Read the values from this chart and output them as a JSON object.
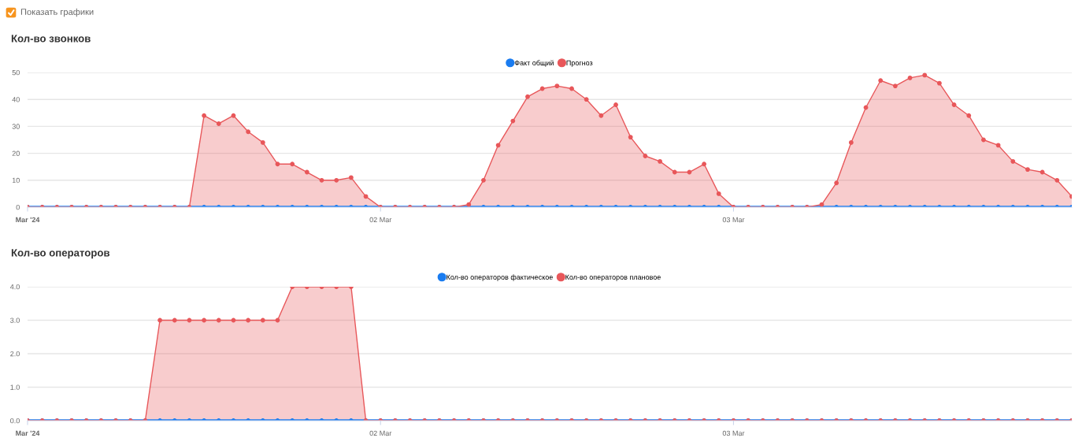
{
  "chart_data": [
    {
      "type": "area",
      "title": "Кол-во звонков",
      "annotations": [
        "Показать графики"
      ],
      "x": [
        "2024-03-01T00:00",
        "2024-03-01T01:00",
        "2024-03-01T02:00",
        "2024-03-01T03:00",
        "2024-03-01T04:00",
        "2024-03-01T05:00",
        "2024-03-01T06:00",
        "2024-03-01T07:00",
        "2024-03-01T08:00",
        "2024-03-01T09:00",
        "2024-03-01T10:00",
        "2024-03-01T11:00",
        "2024-03-01T12:00",
        "2024-03-01T13:00",
        "2024-03-01T14:00",
        "2024-03-01T15:00",
        "2024-03-01T16:00",
        "2024-03-01T17:00",
        "2024-03-01T18:00",
        "2024-03-01T19:00",
        "2024-03-01T20:00",
        "2024-03-01T21:00",
        "2024-03-01T22:00",
        "2024-03-01T23:00",
        "2024-03-02T00:00",
        "2024-03-02T01:00",
        "2024-03-02T02:00",
        "2024-03-02T03:00",
        "2024-03-02T04:00",
        "2024-03-02T05:00",
        "2024-03-02T06:00",
        "2024-03-02T07:00",
        "2024-03-02T08:00",
        "2024-03-02T09:00",
        "2024-03-02T10:00",
        "2024-03-02T11:00",
        "2024-03-02T12:00",
        "2024-03-02T13:00",
        "2024-03-02T14:00",
        "2024-03-02T15:00",
        "2024-03-02T16:00",
        "2024-03-02T17:00",
        "2024-03-02T18:00",
        "2024-03-02T19:00",
        "2024-03-02T20:00",
        "2024-03-02T21:00",
        "2024-03-02T22:00",
        "2024-03-02T23:00",
        "2024-03-03T00:00",
        "2024-03-03T01:00",
        "2024-03-03T02:00",
        "2024-03-03T03:00",
        "2024-03-03T04:00",
        "2024-03-03T05:00",
        "2024-03-03T06:00",
        "2024-03-03T07:00",
        "2024-03-03T08:00",
        "2024-03-03T09:00",
        "2024-03-03T10:00",
        "2024-03-03T11:00",
        "2024-03-03T12:00",
        "2024-03-03T13:00",
        "2024-03-03T14:00",
        "2024-03-03T15:00",
        "2024-03-03T16:00",
        "2024-03-03T17:00",
        "2024-03-03T18:00",
        "2024-03-03T19:00",
        "2024-03-03T20:00",
        "2024-03-03T21:00",
        "2024-03-03T22:00",
        "2024-03-03T23:00"
      ],
      "xlim": [
        "2024-03-01T00:00",
        "2024-03-03T23:00"
      ],
      "xticks": [
        {
          "value": "2024-03-01T00:00",
          "label": "Mar '24"
        },
        {
          "value": "2024-03-02T00:00",
          "label": "02 Mar"
        },
        {
          "value": "2024-03-03T00:00",
          "label": "03 Mar"
        }
      ],
      "ylim": [
        0,
        50
      ],
      "yticks": [
        0,
        10,
        20,
        30,
        40,
        50
      ],
      "grid": "y",
      "legend": "top",
      "marker": "circle",
      "line_style": "solid",
      "series": [
        {
          "name": "Факт общий",
          "type": "line",
          "color": "#1a7cf0",
          "values": [
            0,
            0,
            0,
            0,
            0,
            0,
            0,
            0,
            0,
            0,
            0,
            0,
            0,
            0,
            0,
            0,
            0,
            0,
            0,
            0,
            0,
            0,
            0,
            0,
            0,
            0,
            0,
            0,
            0,
            0,
            0,
            0,
            0,
            0,
            0,
            0,
            0,
            0,
            0,
            0,
            0,
            0,
            0,
            0,
            0,
            0,
            0,
            0,
            0,
            0,
            0,
            0,
            0,
            0,
            0,
            0,
            0,
            0,
            0,
            0,
            0,
            0,
            0,
            0,
            0,
            0,
            0,
            0,
            0,
            0,
            0,
            0
          ]
        },
        {
          "name": "Прогноз",
          "color": "#e8575a",
          "values": [
            0,
            0,
            0,
            0,
            0,
            0,
            0,
            0,
            0,
            0,
            0,
            0,
            34,
            31,
            34,
            28,
            24,
            16,
            16,
            13,
            10,
            10,
            11,
            4,
            0,
            0,
            0,
            0,
            0,
            0,
            1,
            10,
            23,
            32,
            41,
            44,
            45,
            44,
            40,
            34,
            38,
            26,
            19,
            17,
            13,
            13,
            16,
            5,
            0,
            0,
            0,
            0,
            0,
            0,
            1,
            9,
            24,
            37,
            47,
            45,
            48,
            49,
            46,
            38,
            34,
            25,
            23,
            17,
            14,
            13,
            10,
            4
          ]
        }
      ]
    },
    {
      "type": "area",
      "title": "Кол-во операторов",
      "x": [
        "2024-03-01T00:00",
        "2024-03-01T01:00",
        "2024-03-01T02:00",
        "2024-03-01T03:00",
        "2024-03-01T04:00",
        "2024-03-01T05:00",
        "2024-03-01T06:00",
        "2024-03-01T07:00",
        "2024-03-01T08:00",
        "2024-03-01T09:00",
        "2024-03-01T10:00",
        "2024-03-01T11:00",
        "2024-03-01T12:00",
        "2024-03-01T13:00",
        "2024-03-01T14:00",
        "2024-03-01T15:00",
        "2024-03-01T16:00",
        "2024-03-01T17:00",
        "2024-03-01T18:00",
        "2024-03-01T19:00",
        "2024-03-01T20:00",
        "2024-03-01T21:00",
        "2024-03-01T22:00",
        "2024-03-01T23:00",
        "2024-03-02T00:00",
        "2024-03-02T01:00",
        "2024-03-02T02:00",
        "2024-03-02T03:00",
        "2024-03-02T04:00",
        "2024-03-02T05:00",
        "2024-03-02T06:00",
        "2024-03-02T07:00",
        "2024-03-02T08:00",
        "2024-03-02T09:00",
        "2024-03-02T10:00",
        "2024-03-02T11:00",
        "2024-03-02T12:00",
        "2024-03-02T13:00",
        "2024-03-02T14:00",
        "2024-03-02T15:00",
        "2024-03-02T16:00",
        "2024-03-02T17:00",
        "2024-03-02T18:00",
        "2024-03-02T19:00",
        "2024-03-02T20:00",
        "2024-03-02T21:00",
        "2024-03-02T22:00",
        "2024-03-02T23:00",
        "2024-03-03T00:00",
        "2024-03-03T01:00",
        "2024-03-03T02:00",
        "2024-03-03T03:00",
        "2024-03-03T04:00",
        "2024-03-03T05:00",
        "2024-03-03T06:00",
        "2024-03-03T07:00",
        "2024-03-03T08:00",
        "2024-03-03T09:00",
        "2024-03-03T10:00",
        "2024-03-03T11:00",
        "2024-03-03T12:00",
        "2024-03-03T13:00",
        "2024-03-03T14:00",
        "2024-03-03T15:00",
        "2024-03-03T16:00",
        "2024-03-03T17:00",
        "2024-03-03T18:00",
        "2024-03-03T19:00",
        "2024-03-03T20:00",
        "2024-03-03T21:00",
        "2024-03-03T22:00",
        "2024-03-03T23:00"
      ],
      "xlim": [
        "2024-03-01T00:00",
        "2024-03-03T23:00"
      ],
      "xticks": [
        {
          "value": "2024-03-01T00:00",
          "label": "Mar '24"
        },
        {
          "value": "2024-03-02T00:00",
          "label": "02 Mar"
        },
        {
          "value": "2024-03-03T00:00",
          "label": "03 Mar"
        }
      ],
      "ylim": [
        0,
        4
      ],
      "yticks": [
        {
          "value": 0,
          "label": "0.0"
        },
        {
          "value": 1,
          "label": "1.0"
        },
        {
          "value": 2,
          "label": "2.0"
        },
        {
          "value": 3,
          "label": "3.0"
        },
        {
          "value": 4,
          "label": "4.0"
        }
      ],
      "grid": "y",
      "legend": "top",
      "marker": "circle",
      "line_style": "solid",
      "series": [
        {
          "name": "Кол-во операторов фактическое",
          "type": "line",
          "color": "#1a7cf0",
          "values": [
            0,
            0,
            0,
            0,
            0,
            0,
            0,
            0,
            0,
            0,
            0,
            0,
            0,
            0,
            0,
            0,
            0,
            0,
            0,
            0,
            0,
            0,
            0,
            0,
            0,
            0,
            0,
            0,
            0,
            0,
            0,
            0,
            0,
            0,
            0,
            0,
            0,
            0,
            0,
            0,
            0,
            0,
            0,
            0,
            0,
            0,
            0,
            0,
            0,
            0,
            0,
            0,
            0,
            0,
            0,
            0,
            0,
            0,
            0,
            0,
            0,
            0,
            0,
            0,
            0,
            0,
            0,
            0,
            0,
            0,
            0,
            0
          ]
        },
        {
          "name": "Кол-во операторов плановое",
          "color": "#e8575a",
          "values": [
            0,
            0,
            0,
            0,
            0,
            0,
            0,
            0,
            0,
            3,
            3,
            3,
            3,
            3,
            3,
            3,
            3,
            3,
            4,
            4,
            4,
            4,
            4,
            0,
            0,
            0,
            0,
            0,
            0,
            0,
            0,
            0,
            0,
            0,
            0,
            0,
            0,
            0,
            0,
            0,
            0,
            0,
            0,
            0,
            0,
            0,
            0,
            0,
            0,
            0,
            0,
            0,
            0,
            0,
            0,
            0,
            0,
            0,
            0,
            0,
            0,
            0,
            0,
            0,
            0,
            0,
            0,
            0,
            0,
            0,
            0,
            0
          ]
        }
      ]
    }
  ]
}
